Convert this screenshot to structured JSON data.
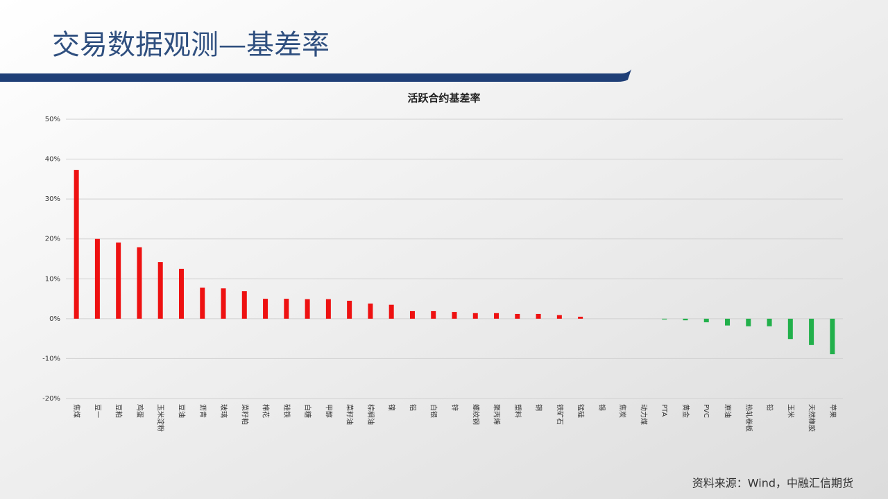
{
  "slide_title": "交易数据观测—基差率",
  "source": "资料来源：Wind，中融汇信期货",
  "chart_data": {
    "type": "bar",
    "title": "活跃合约基差率",
    "categories": [
      "焦煤",
      "豆一",
      "豆粕",
      "鸡蛋",
      "玉米淀粉",
      "豆油",
      "沥青",
      "玻璃",
      "菜籽粕",
      "棉花",
      "硅铁",
      "白糖",
      "甲醇",
      "菜籽油",
      "棕榈油",
      "镍",
      "铝",
      "白银",
      "锌",
      "螺纹钢",
      "聚丙烯",
      "塑料",
      "铜",
      "铁矿石",
      "锰硅",
      "锡",
      "焦炭",
      "动力煤",
      "PTA",
      "黄金",
      "PVC",
      "原油",
      "热轧卷板",
      "铅",
      "玉米",
      "天然橡胶",
      "苹果"
    ],
    "values": [
      37.3,
      20.0,
      19.1,
      17.9,
      14.2,
      12.5,
      7.8,
      7.6,
      6.9,
      5.0,
      5.0,
      4.9,
      4.9,
      4.5,
      3.8,
      3.5,
      1.9,
      1.9,
      1.7,
      1.4,
      1.4,
      1.2,
      1.2,
      0.9,
      0.5,
      0,
      0,
      0,
      -0.2,
      -0.4,
      -0.9,
      -1.7,
      -1.9,
      -1.9,
      -5.1,
      -6.6,
      -8.9
    ],
    "positive_color": "#ee1111",
    "negative_color": "#22b04b",
    "ylim": [
      -20,
      50
    ],
    "yticks": [
      {
        "value": -20,
        "label": "-20%"
      },
      {
        "value": -10,
        "label": "-10%"
      },
      {
        "value": 0,
        "label": "0%"
      },
      {
        "value": 10,
        "label": "10%"
      },
      {
        "value": 20,
        "label": "20%"
      },
      {
        "value": 30,
        "label": "30%"
      },
      {
        "value": 40,
        "label": "40%"
      },
      {
        "value": 50,
        "label": "50%"
      }
    ],
    "grid": true
  }
}
